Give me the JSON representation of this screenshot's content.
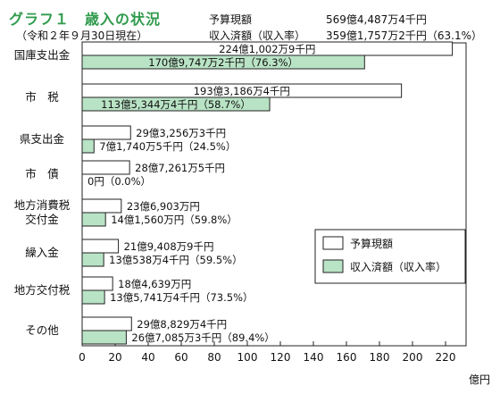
{
  "header": {
    "title": "グラフ１　歳入の状況",
    "subtitle": "（令和２年９月30日現在）",
    "budget_label": "予算現額",
    "budget_value": "569億4,487万4千円",
    "received_label": "収入済額（収入率）",
    "received_value": "359億1,757万2千円（63.1%）"
  },
  "chart_data": {
    "type": "bar",
    "orientation": "horizontal",
    "categories": [
      "国庫支出金",
      "市　税",
      "県支出金",
      "市　債",
      "地方消費税\n交付金",
      "繰入金",
      "地方交付税",
      "その他"
    ],
    "series": [
      {
        "name": "予算現額",
        "color": "#ffffff",
        "values": [
          224.1003,
          193.3186,
          29.3256,
          28.7262,
          23.6903,
          21.9409,
          18.4639,
          29.883
        ],
        "labels": [
          "224億1,002万9千円",
          "193億3,186万4千円",
          "29億3,256万3千円",
          "28億7,261万5千円",
          "23億6,903万円",
          "21億9,408万9千円",
          "18億4,639万円",
          "29億8,829万4千円"
        ]
      },
      {
        "name": "収入済額（収入率）",
        "color": "#b9e3c5",
        "values": [
          170.9747,
          113.5345,
          7.174,
          0,
          14.156,
          13.0538,
          13.5741,
          26.7086
        ],
        "labels": [
          "170億9,747万2千円（76.3%）",
          "113億5,344万4千円（58.7%）",
          "7億1,740万5千円（24.5%）",
          "0円（0.0%）",
          "14億1,560万円（59.8%）",
          "13億538万4千円（59.5%）",
          "13億5,741万4千円（73.5%）",
          "26億7,085万3千円（89.4%）"
        ]
      }
    ],
    "x_ticks": [
      0,
      20,
      40,
      60,
      80,
      100,
      120,
      140,
      160,
      180,
      200,
      220
    ],
    "xlim": [
      0,
      230
    ],
    "x_unit": "億円",
    "legend": {
      "position": "right",
      "items": [
        "予算現額",
        "収入済額（収入率）"
      ]
    }
  }
}
